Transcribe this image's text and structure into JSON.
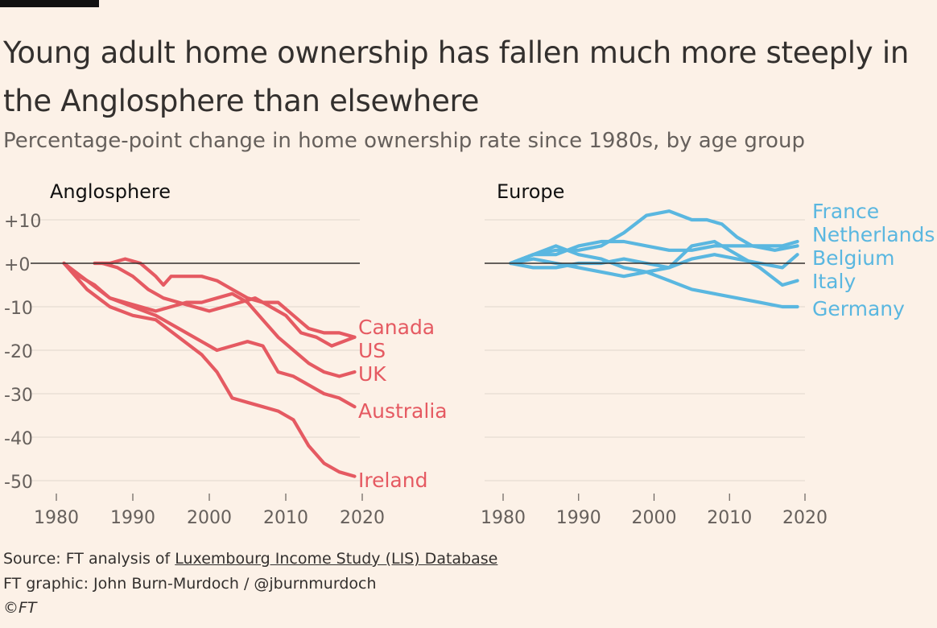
{
  "header": {
    "title": "Young adult home ownership has fallen much more steeply in the Anglosphere than elsewhere",
    "subtitle": "Percentage-point change in home ownership rate since 1980s, by age group"
  },
  "footer": {
    "source_prefix": "Source: FT analysis of ",
    "source_link": "Luxembourg Income Study (LIS) Database",
    "credit": "FT graphic: John Burn-Murdoch / @jburnmurdoch",
    "copyright": "©FT"
  },
  "colors": {
    "anglosphere": "#e55a62",
    "europe": "#5ab7e0",
    "grid": "#e0d7cd",
    "zero": "#33302e",
    "axis_text": "#66605c"
  },
  "chart_data": [
    {
      "type": "line",
      "title": "Anglosphere",
      "xlim": [
        1980,
        2020
      ],
      "ylim": [
        -50,
        10
      ],
      "x_ticks": [
        1980,
        1990,
        2000,
        2010,
        2020
      ],
      "y_ticks": [
        10,
        0,
        -10,
        -20,
        -30,
        -40,
        -50
      ],
      "y_tick_labels": [
        "+10",
        "+0",
        "-10",
        "-20",
        "-30",
        "-40",
        "-50"
      ],
      "series": [
        {
          "name": "Canada",
          "x": [
            1985,
            1987,
            1989,
            1991,
            1993,
            1994,
            1995,
            1997,
            1999,
            2001,
            2003,
            2005,
            2007,
            2009,
            2011,
            2013,
            2015,
            2017,
            2019
          ],
          "y": [
            0,
            0,
            1,
            0,
            -3,
            -5,
            -3,
            -3,
            -3,
            -4,
            -6,
            -8,
            -9,
            -9,
            -12,
            -15,
            -16,
            -16,
            -17
          ]
        },
        {
          "name": "US",
          "x": [
            1986,
            1988,
            1990,
            1992,
            1994,
            1996,
            1998,
            2000,
            2002,
            2004,
            2006,
            2008,
            2010,
            2012,
            2014,
            2016,
            2019
          ],
          "y": [
            0,
            -1,
            -3,
            -6,
            -8,
            -9,
            -10,
            -11,
            -10,
            -9,
            -8,
            -10,
            -12,
            -16,
            -17,
            -19,
            -17
          ]
        },
        {
          "name": "UK",
          "x": [
            1981,
            1983,
            1985,
            1987,
            1989,
            1991,
            1993,
            1995,
            1997,
            1999,
            2001,
            2003,
            2005,
            2007,
            2009,
            2011,
            2013,
            2015,
            2017,
            2019
          ],
          "y": [
            0,
            -3,
            -5,
            -8,
            -9,
            -10,
            -11,
            -10,
            -9,
            -9,
            -8,
            -7,
            -9,
            -13,
            -17,
            -20,
            -23,
            -25,
            -26,
            -25
          ]
        },
        {
          "name": "Australia",
          "x": [
            1981,
            1984,
            1987,
            1990,
            1993,
            1996,
            1999,
            2001,
            2003,
            2005,
            2007,
            2009,
            2011,
            2013,
            2015,
            2017,
            2019
          ],
          "y": [
            0,
            -4,
            -8,
            -10,
            -12,
            -15,
            -18,
            -20,
            -19,
            -18,
            -19,
            -25,
            -26,
            -28,
            -30,
            -31,
            -33
          ]
        },
        {
          "name": "Ireland",
          "x": [
            1981,
            1984,
            1987,
            1990,
            1993,
            1996,
            1999,
            2001,
            2003,
            2005,
            2007,
            2009,
            2011,
            2013,
            2015,
            2017,
            2019
          ],
          "y": [
            0,
            -6,
            -10,
            -12,
            -13,
            -17,
            -21,
            -25,
            -31,
            -32,
            -33,
            -34,
            -36,
            -42,
            -46,
            -48,
            -49
          ]
        }
      ]
    },
    {
      "type": "line",
      "title": "Europe",
      "xlim": [
        1980,
        2020
      ],
      "ylim": [
        -50,
        10
      ],
      "x_ticks": [
        1980,
        1990,
        2000,
        2010,
        2020
      ],
      "series": [
        {
          "name": "France",
          "x": [
            1981,
            1984,
            1987,
            1990,
            1993,
            1996,
            1999,
            2002,
            2005,
            2007,
            2009,
            2011,
            2013,
            2016,
            2019
          ],
          "y": [
            0,
            2,
            3,
            3,
            4,
            7,
            11,
            12,
            10,
            10,
            9,
            6,
            4,
            3,
            4
          ]
        },
        {
          "name": "Netherlands",
          "x": [
            1981,
            1984,
            1987,
            1990,
            1993,
            1996,
            1999,
            2002,
            2005,
            2008,
            2011,
            2014,
            2017,
            2019
          ],
          "y": [
            0,
            2,
            2,
            4,
            5,
            5,
            4,
            3,
            3,
            4,
            4,
            4,
            4,
            5
          ]
        },
        {
          "name": "Belgium",
          "x": [
            1981,
            1984,
            1987,
            1990,
            1993,
            1996,
            1999,
            2002,
            2005,
            2008,
            2011,
            2014,
            2017,
            2019
          ],
          "y": [
            0,
            -1,
            -1,
            0,
            0,
            1,
            0,
            -1,
            1,
            2,
            1,
            0,
            -1,
            2
          ]
        },
        {
          "name": "Italy",
          "x": [
            1981,
            1984,
            1987,
            1990,
            1993,
            1996,
            1999,
            2002,
            2005,
            2008,
            2011,
            2014,
            2017,
            2019
          ],
          "y": [
            0,
            1,
            0,
            -1,
            -2,
            -3,
            -2,
            -1,
            4,
            5,
            2,
            -1,
            -5,
            -4
          ]
        },
        {
          "name": "Germany",
          "x": [
            1981,
            1984,
            1987,
            1990,
            1993,
            1996,
            1999,
            2002,
            2005,
            2008,
            2011,
            2014,
            2017,
            2019
          ],
          "y": [
            0,
            2,
            4,
            2,
            1,
            -1,
            -2,
            -4,
            -6,
            -7,
            -8,
            -9,
            -10,
            -10
          ]
        }
      ]
    }
  ]
}
